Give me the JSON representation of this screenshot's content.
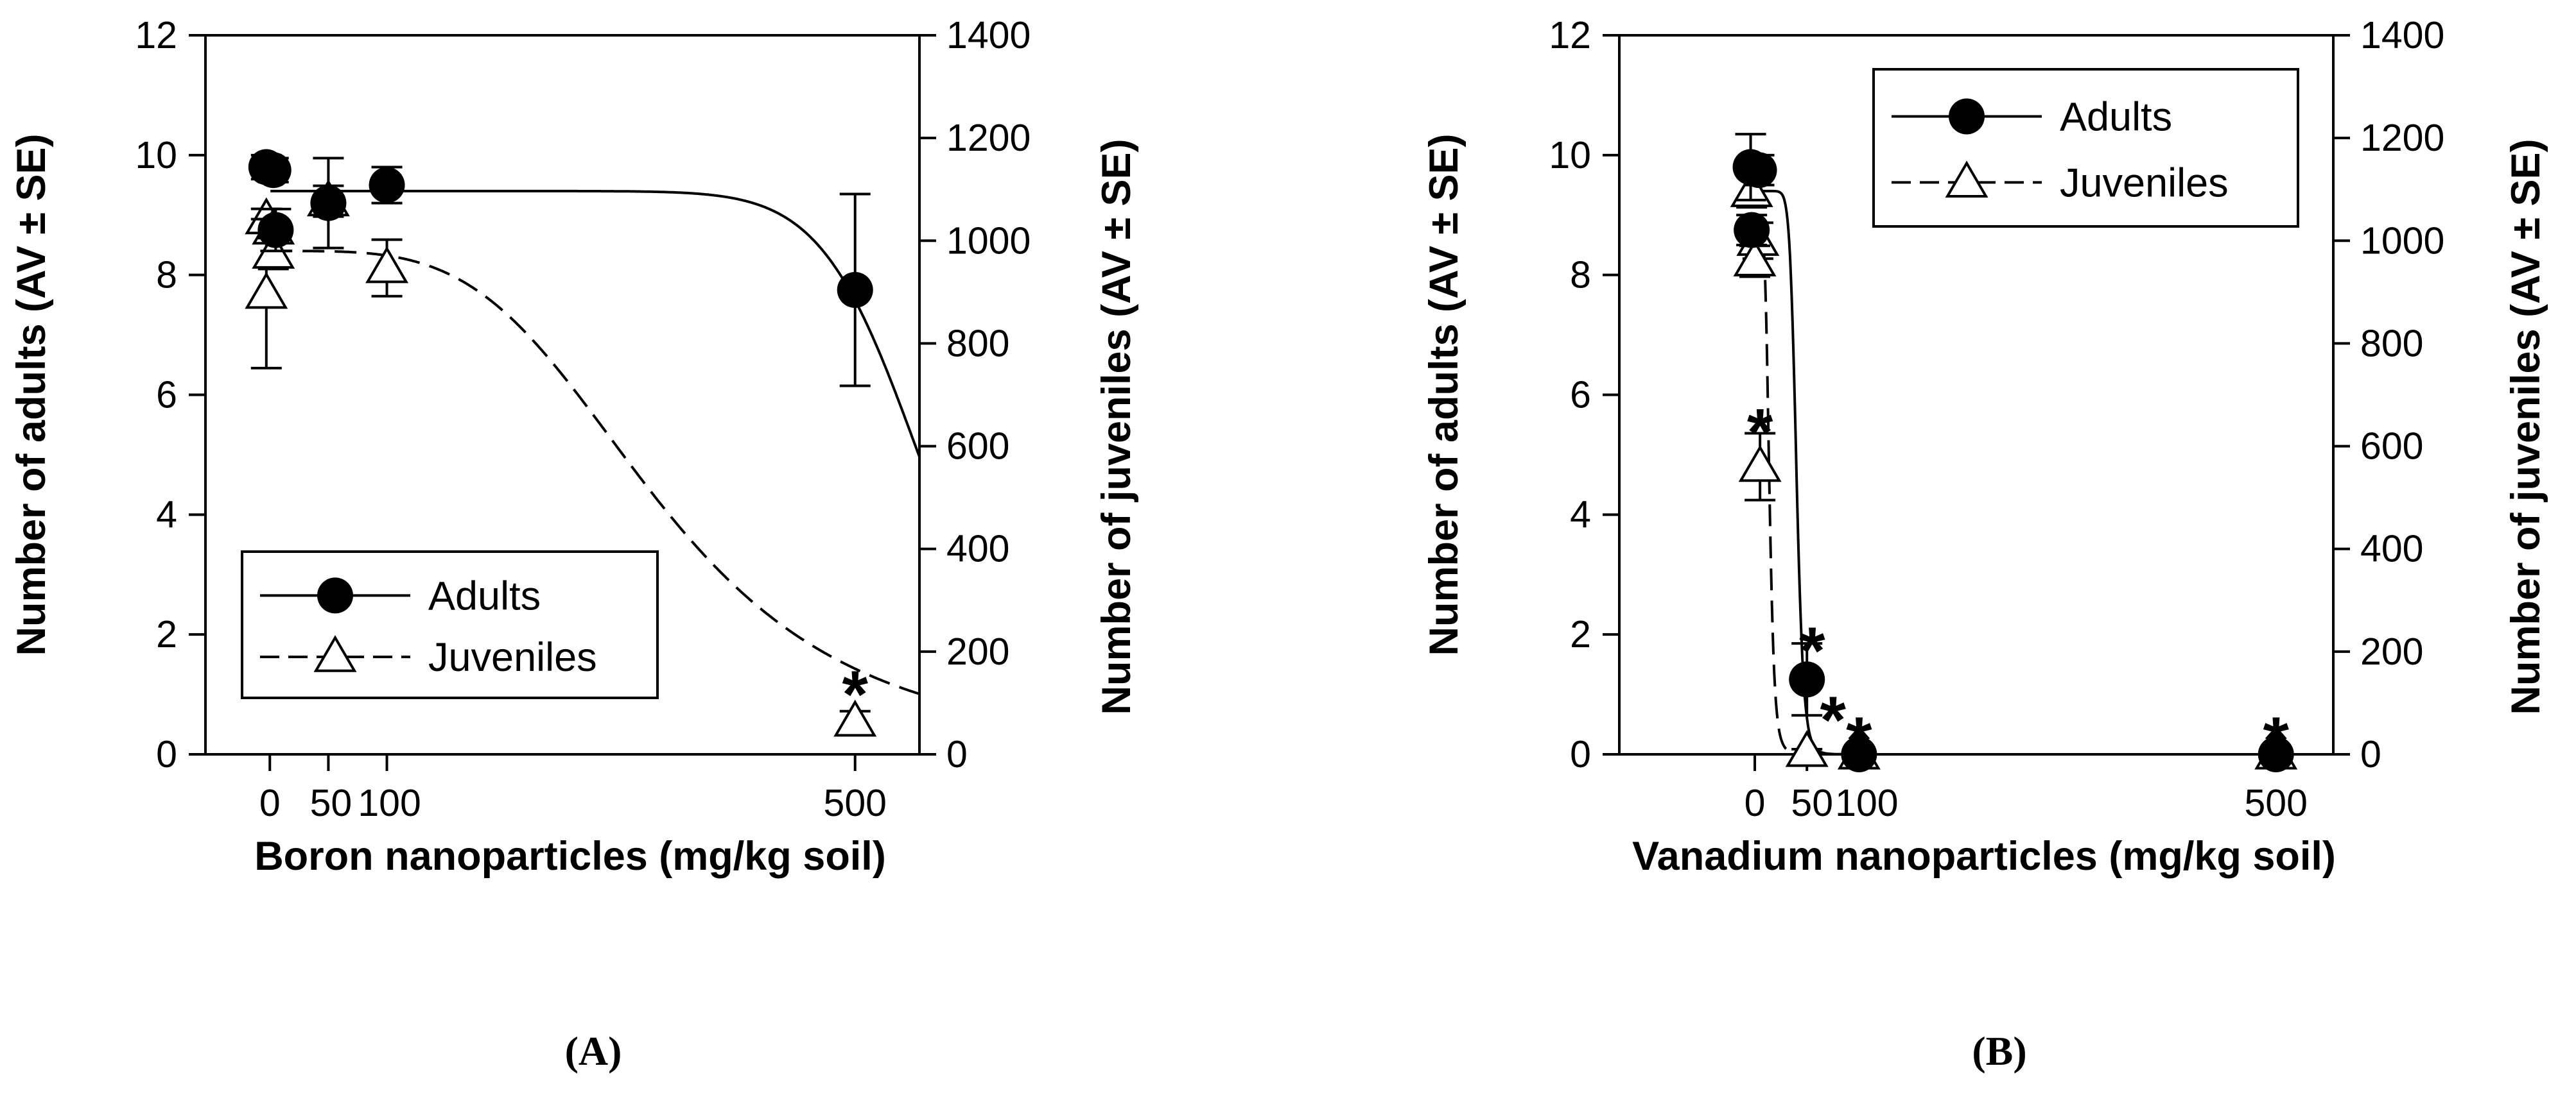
{
  "chart_data": [
    {
      "type": "line",
      "panel_label": "(A)",
      "xlabel": "Boron nanoparticles (mg/kg soil)",
      "ylabel_left": "Number of adults (AV ± SE)",
      "ylabel_right": "Number of juveniles (AV ± SE)",
      "xticks": [
        0,
        50,
        100,
        500
      ],
      "xtick_labels": [
        "0",
        "50",
        "100",
        "500"
      ],
      "xlim": [
        -55,
        555
      ],
      "ylim_left": [
        0,
        12
      ],
      "yticks_left": [
        0,
        2,
        4,
        6,
        8,
        10,
        12
      ],
      "ylim_right": [
        0,
        1400
      ],
      "yticks_right": [
        0,
        200,
        400,
        600,
        800,
        1000,
        1200,
        1400
      ],
      "legend": {
        "position": "bottom-left",
        "entries": [
          "Adults",
          "Juveniles"
        ]
      },
      "series": [
        {
          "name": "Adults",
          "axis": "left",
          "marker": "filled-circle",
          "points": [
            {
              "x": -3,
              "y": 9.8,
              "err": 0.2
            },
            {
              "x": 3,
              "y": 9.75,
              "err": 0.2
            },
            {
              "x": 5,
              "y": 8.75,
              "err": 0.35
            },
            {
              "x": 50,
              "y": 9.2,
              "err": 0.75
            },
            {
              "x": 100,
              "y": 9.5,
              "err": 0.3
            },
            {
              "x": 500,
              "y": 7.75,
              "err": 1.6
            }
          ],
          "fit": {
            "type": "logistic",
            "top": 9.4,
            "ec50": 560,
            "slope": 12.56,
            "xmax": 555
          }
        },
        {
          "name": "Juveniles",
          "axis": "right",
          "marker": "open-triangle",
          "points": [
            {
              "x": -3,
              "y": 1042,
              "err": 20
            },
            {
              "x": 3,
              "y": 1022,
              "err": 20
            },
            {
              "x": -3,
              "y": 897,
              "err": 145
            },
            {
              "x": 3,
              "y": 975,
              "err": 30
            },
            {
              "x": 50,
              "y": 1077,
              "err": 30
            },
            {
              "x": 100,
              "y": 947,
              "err": 55
            },
            {
              "x": 500,
              "y": 64,
              "err": 20
            }
          ],
          "fit": {
            "type": "logistic",
            "top": 980,
            "ec50": 333,
            "slope": 3.9,
            "xmax": 555
          }
        }
      ],
      "significance_markers": [
        {
          "x": 500,
          "y": 140,
          "axis": "right",
          "label": "*"
        }
      ]
    },
    {
      "type": "line",
      "panel_label": "(B)",
      "xlabel": "Vanadium nanoparticles (mg/kg soil)",
      "ylabel_left": "Number of adults (AV ± SE)",
      "ylabel_right": "Number of juveniles (AV ± SE)",
      "xticks": [
        0,
        50,
        100,
        500
      ],
      "xtick_labels": [
        "0",
        "50",
        "100",
        "500"
      ],
      "xlim": [
        -130,
        555
      ],
      "ylim_left": [
        0,
        12
      ],
      "yticks_left": [
        0,
        2,
        4,
        6,
        8,
        10,
        12
      ],
      "ylim_right": [
        0,
        1400
      ],
      "yticks_right": [
        0,
        200,
        400,
        600,
        800,
        1000,
        1200,
        1400
      ],
      "legend": {
        "position": "top-right",
        "entries": [
          "Adults",
          "Juveniles"
        ]
      },
      "series": [
        {
          "name": "Adults",
          "axis": "left",
          "marker": "filled-circle",
          "points": [
            {
              "x": -4,
              "y": 9.8,
              "err": 0.55
            },
            {
              "x": 4,
              "y": 9.75,
              "err": 0.25
            },
            {
              "x": -3,
              "y": 8.75,
              "err": 0.25
            },
            {
              "x": 50,
              "y": 1.25,
              "err": 0.6
            },
            {
              "x": 100,
              "y": 0,
              "err": 0
            },
            {
              "x": 500,
              "y": 0,
              "err": 0
            }
          ],
          "fit": {
            "type": "logistic",
            "top": 9.4,
            "ec50": 40,
            "slope": 12,
            "xmax": 555
          }
        },
        {
          "name": "Juveniles",
          "axis": "right",
          "marker": "open-triangle",
          "points": [
            {
              "x": -3,
              "y": 1095,
              "err": 30
            },
            {
              "x": 3,
              "y": 1000,
              "err": 35
            },
            {
              "x": 0,
              "y": 960,
              "err": 30
            },
            {
              "x": 5,
              "y": 560,
              "err": 65
            },
            {
              "x": 50,
              "y": 5,
              "err": 5
            },
            {
              "x": 100,
              "y": 0,
              "err": 0
            },
            {
              "x": 500,
              "y": 0,
              "err": 0
            }
          ],
          "fit": {
            "type": "logistic",
            "top": 1040,
            "ec50": 14,
            "slope": 6,
            "xmax": 555
          }
        }
      ],
      "significance_markers": [
        {
          "x": 5,
          "y": 650,
          "axis": "right",
          "label": "*"
        },
        {
          "x": 55,
          "y": 225,
          "axis": "right",
          "label": "*"
        },
        {
          "x": 75,
          "y": 90,
          "axis": "right",
          "label": "*"
        },
        {
          "x": 100,
          "y": 50,
          "axis": "right",
          "label": "*"
        },
        {
          "x": 500,
          "y": 50,
          "axis": "right",
          "label": "*"
        }
      ]
    }
  ]
}
